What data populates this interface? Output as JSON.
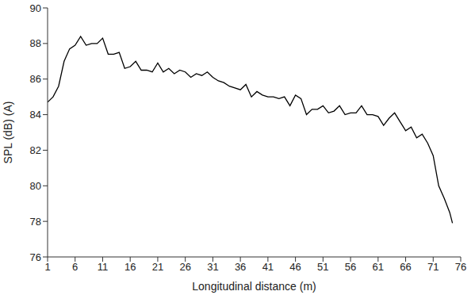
{
  "chart_data": {
    "type": "line",
    "x_label": "Longitudinal distance (m)",
    "y_label": "SPL (dB) (A)",
    "x": [
      1,
      2,
      3,
      4,
      5,
      6,
      7,
      8,
      9,
      10,
      11,
      12,
      13,
      14,
      15,
      16,
      17,
      18,
      19,
      20,
      21,
      22,
      23,
      24,
      25,
      26,
      27,
      28,
      29,
      30,
      31,
      32,
      33,
      34,
      35,
      36,
      37,
      38,
      39,
      40,
      41,
      42,
      43,
      44,
      45,
      46,
      47,
      48,
      49,
      50,
      51,
      52,
      53,
      54,
      55,
      56,
      57,
      58,
      59,
      60,
      61,
      62,
      63,
      64,
      65,
      66,
      67,
      68,
      69,
      70,
      71,
      72,
      73,
      74,
      74.5
    ],
    "values": [
      84.7,
      85.0,
      85.6,
      87.0,
      87.7,
      87.9,
      88.4,
      87.9,
      88.0,
      88.0,
      88.3,
      87.4,
      87.4,
      87.5,
      86.6,
      86.7,
      87.0,
      86.5,
      86.5,
      86.4,
      86.9,
      86.4,
      86.6,
      86.3,
      86.5,
      86.4,
      86.1,
      86.3,
      86.2,
      86.4,
      86.1,
      85.9,
      85.8,
      85.6,
      85.5,
      85.4,
      85.7,
      85.0,
      85.3,
      85.1,
      85.0,
      85.0,
      84.9,
      85.0,
      84.5,
      85.1,
      84.9,
      84.0,
      84.3,
      84.3,
      84.5,
      84.1,
      84.2,
      84.5,
      84.0,
      84.1,
      84.1,
      84.5,
      84.0,
      84.0,
      83.9,
      83.4,
      83.8,
      84.1,
      83.6,
      83.1,
      83.3,
      82.7,
      82.9,
      82.4,
      81.7,
      80.0,
      79.3,
      78.5,
      77.9
    ],
    "color": "#000000",
    "xlim": [
      1,
      76
    ],
    "xticks": [
      1,
      6,
      11,
      16,
      21,
      26,
      31,
      36,
      41,
      46,
      51,
      56,
      61,
      66,
      71,
      76
    ],
    "ylim": [
      76,
      90
    ],
    "yticks": [
      76,
      78,
      80,
      82,
      84,
      86,
      88,
      90
    ],
    "grid": false
  }
}
